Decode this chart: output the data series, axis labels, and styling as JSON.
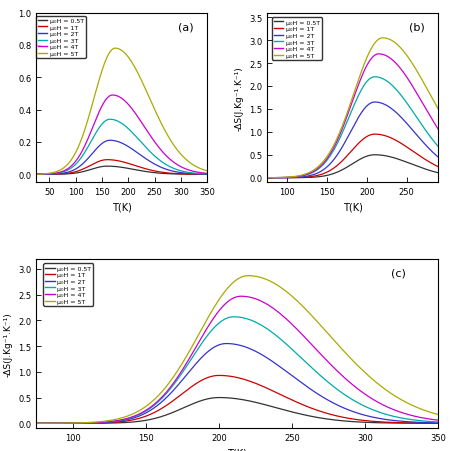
{
  "panels": [
    "(a)",
    "(b)",
    "(c)"
  ],
  "colors": [
    "#333333",
    "#cc0000",
    "#3333cc",
    "#00aaaa",
    "#cc00cc",
    "#aaaa00"
  ],
  "labels": [
    "μ₀H = 0.5T",
    "μ₀H = 1T",
    "μ₀H = 2T",
    "μ₀H = 3T",
    "μ₀H = 4T",
    "μ₀H = 5T"
  ],
  "panel_a": {
    "xlabel": "T(K)",
    "ylabel": "",
    "xlim": [
      25,
      350
    ],
    "ylim": [
      -0.05,
      1.0
    ],
    "xticks": [
      50,
      100,
      150,
      200,
      250,
      300,
      350
    ],
    "peaks": [
      160,
      160,
      165,
      165,
      170,
      175
    ],
    "peak_heights": [
      0.05,
      0.09,
      0.21,
      0.34,
      0.49,
      0.78
    ],
    "widths": [
      38,
      40,
      42,
      44,
      46,
      50
    ],
    "baseline": [
      0.0,
      0.0,
      0.0,
      0.0,
      0.0,
      0.0
    ],
    "tail_right": [
      0.02,
      0.03,
      0.06,
      0.08,
      0.1,
      0.18
    ]
  },
  "panel_b": {
    "xlabel": "T(K)",
    "ylabel": "-ΔS(J.Kg⁻¹.K⁻¹)",
    "xlim": [
      75,
      290
    ],
    "ylim": [
      -0.1,
      3.6
    ],
    "xticks": [
      100,
      150,
      200,
      250
    ],
    "peaks": [
      210,
      210,
      210,
      210,
      215,
      220
    ],
    "peak_heights": [
      0.5,
      0.95,
      1.65,
      2.2,
      2.7,
      3.05
    ],
    "widths": [
      35,
      37,
      38,
      40,
      42,
      45
    ],
    "baseline": [
      0.0,
      0.0,
      0.0,
      0.0,
      0.0,
      0.0
    ],
    "tail_right": [
      0.0,
      0.0,
      0.05,
      0.1,
      0.15,
      0.2
    ]
  },
  "panel_c": {
    "xlabel": "T(K)",
    "ylabel": "-ΔS(J.Kg⁻¹.K⁻¹)",
    "xlim": [
      75,
      350
    ],
    "ylim": [
      -0.1,
      3.2
    ],
    "xticks": [
      100,
      150,
      200,
      250,
      300,
      350
    ],
    "peaks": [
      200,
      200,
      205,
      210,
      215,
      220
    ],
    "peak_heights": [
      0.5,
      0.93,
      1.55,
      2.07,
      2.47,
      2.87
    ],
    "widths": [
      30,
      32,
      34,
      36,
      38,
      42
    ],
    "baseline": [
      0.0,
      0.0,
      0.0,
      0.0,
      0.0,
      0.0
    ],
    "tail_right": [
      0.0,
      0.0,
      0.04,
      0.08,
      0.12,
      0.18
    ]
  }
}
